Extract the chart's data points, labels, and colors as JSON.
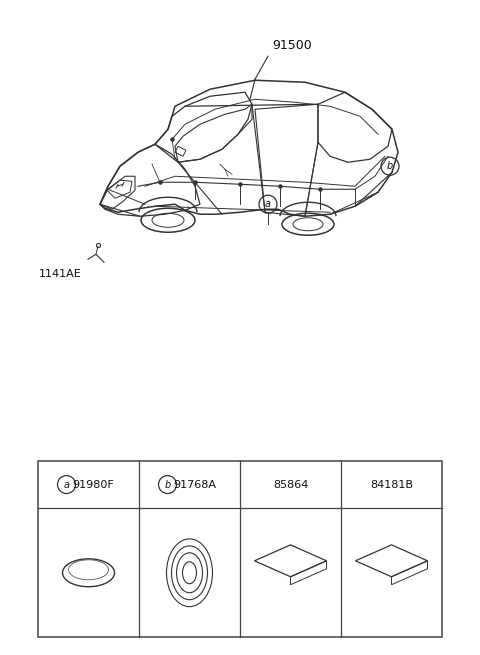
{
  "bg_color": "#ffffff",
  "fig_width": 4.8,
  "fig_height": 6.55,
  "dpi": 100,
  "parts": [
    {
      "label": "a",
      "code": "91980F"
    },
    {
      "label": "b",
      "code": "91768A"
    },
    {
      "label": "",
      "code": "85864"
    },
    {
      "label": "",
      "code": "84181B"
    }
  ],
  "outline_color": "#2a2a2a",
  "text_color": "#111111",
  "line_color": "#333333"
}
